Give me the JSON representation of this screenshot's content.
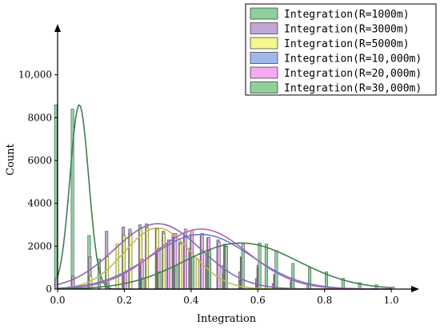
{
  "chart_data": {
    "type": "bar",
    "title": "",
    "xlabel": "Integration",
    "ylabel": "Count",
    "xlim": [
      0,
      1.05
    ],
    "ylim": [
      0,
      12000
    ],
    "x_ticks": [
      0.0,
      0.2,
      0.4,
      0.6,
      0.8,
      1.0
    ],
    "x_tick_labels": [
      "0.0",
      "0.2",
      "0.4",
      "0.6",
      "0.8",
      "1.0"
    ],
    "y_ticks": [
      0,
      2000,
      4000,
      6000,
      8000,
      10000
    ],
    "y_tick_labels": [
      "0",
      "2000",
      "4000",
      "6000",
      "8000",
      "10,000"
    ],
    "legend_position": "top-right",
    "grid": false,
    "series": [
      {
        "name": "Integration(R=1000m)",
        "color": "#8fd19e",
        "curve_color": "#3f7f4f",
        "fit": {
          "mean": 0.065,
          "sd": 0.028,
          "peak": 8600
        },
        "x": [
          0.0,
          0.05,
          0.1,
          0.13
        ],
        "values": [
          8600,
          8400,
          2500,
          1400
        ]
      },
      {
        "name": "Integration(R=3000m)",
        "color": "#bfa8d8",
        "curve_color": "#8a6aa8",
        "fit": {
          "mean": 0.3,
          "sd": 0.13,
          "peak": 3050
        },
        "x": [
          0.0,
          0.05,
          0.1,
          0.15,
          0.2,
          0.22,
          0.25,
          0.27,
          0.3,
          0.32,
          0.35,
          0.37,
          0.4,
          0.45,
          0.5,
          0.55,
          0.6,
          0.65
        ],
        "values": [
          500,
          600,
          1500,
          2700,
          2900,
          2800,
          3000,
          3050,
          2800,
          2700,
          2600,
          2200,
          1900,
          1600,
          1100,
          800,
          500,
          250
        ]
      },
      {
        "name": "Integration(R=5000m)",
        "color": "#f6f58e",
        "curve_color": "#bdbb55",
        "fit": {
          "mean": 0.3,
          "sd": 0.1,
          "peak": 2850
        },
        "x": [
          0.1,
          0.15,
          0.18,
          0.2,
          0.22,
          0.25,
          0.27,
          0.3,
          0.32,
          0.35,
          0.37,
          0.4,
          0.42,
          0.45,
          0.5,
          0.55,
          0.6
        ],
        "values": [
          600,
          1500,
          2100,
          2500,
          2600,
          2800,
          2850,
          2800,
          2600,
          2400,
          2100,
          1700,
          1400,
          1100,
          700,
          400,
          200
        ]
      },
      {
        "name": "Integration(R=10,000m)",
        "color": "#9fb7ec",
        "curve_color": "#5d7fc7",
        "fit": {
          "mean": 0.43,
          "sd": 0.15,
          "peak": 2550
        },
        "x": [
          0.15,
          0.2,
          0.25,
          0.3,
          0.33,
          0.35,
          0.38,
          0.4,
          0.43,
          0.45,
          0.48,
          0.5,
          0.55,
          0.6,
          0.65,
          0.7,
          0.75
        ],
        "values": [
          300,
          700,
          1200,
          1700,
          2100,
          2400,
          2500,
          2550,
          2500,
          2400,
          2300,
          2100,
          1500,
          1100,
          700,
          400,
          250
        ]
      },
      {
        "name": "Integration(R=20,000m)",
        "color": "#f4a9f0",
        "curve_color": "#b565ad",
        "fit": {
          "mean": 0.43,
          "sd": 0.14,
          "peak": 2800
        },
        "x": [
          0.2,
          0.25,
          0.3,
          0.33,
          0.35,
          0.38,
          0.4,
          0.43,
          0.45,
          0.48,
          0.5,
          0.55,
          0.6,
          0.65,
          0.7
        ],
        "values": [
          800,
          1400,
          1900,
          2300,
          2600,
          2800,
          2750,
          2600,
          2400,
          2200,
          2000,
          1500,
          1000,
          600,
          300
        ]
      },
      {
        "name": "Integration(R=30,000m)",
        "color": "#8fd19e",
        "curve_color": "#3f7f4f",
        "fit": {
          "mean": 0.55,
          "sd": 0.17,
          "peak": 2150
        },
        "x": [
          0.25,
          0.3,
          0.35,
          0.4,
          0.45,
          0.5,
          0.55,
          0.6,
          0.62,
          0.65,
          0.7,
          0.75,
          0.8,
          0.85,
          0.9,
          0.95,
          1.0
        ],
        "values": [
          500,
          800,
          1100,
          1500,
          1800,
          2000,
          2100,
          2150,
          2100,
          1800,
          1200,
          1000,
          800,
          500,
          300,
          200,
          100
        ]
      }
    ]
  }
}
